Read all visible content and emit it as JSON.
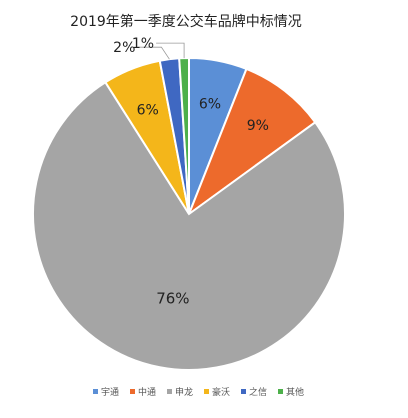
{
  "chart_data": {
    "type": "pie",
    "title": "2019年第一季度公交车品牌中标情况",
    "series": [
      {
        "name": "宇通",
        "value": 6,
        "label": "6%",
        "color": "#5b8fd6"
      },
      {
        "name": "中通",
        "value": 9,
        "label": "9%",
        "color": "#ed6a2c"
      },
      {
        "name": "申龙",
        "value": 76,
        "label": "76%",
        "color": "#a5a5a5"
      },
      {
        "name": "豪沃",
        "value": 6,
        "label": "6%",
        "color": "#f4b61a"
      },
      {
        "name": "之信",
        "value": 2,
        "label": "2%",
        "color": "#3f68c2"
      },
      {
        "name": "其他",
        "value": 1,
        "label": "1%",
        "color": "#4db04a"
      }
    ],
    "legend_position": "bottom"
  }
}
